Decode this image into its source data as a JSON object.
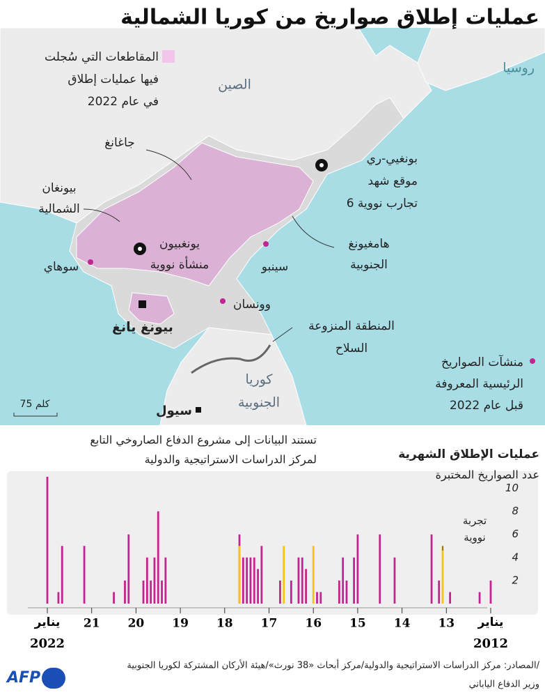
{
  "header": {
    "title": "عمليات إطلاق صواريخ من كوريا الشمالية"
  },
  "map": {
    "legend": [
      "المقاطعات التي سُجلت",
      "فيها عمليات إطلاق",
      "في عام 2022"
    ],
    "russia": "روسيا",
    "china": "الصين",
    "south_korea": [
      "كوريا",
      "الجنوبية"
    ],
    "jagang": "جاغانغ",
    "north_pyongan": [
      "بيونغان",
      "الشمالية"
    ],
    "sohae": "سوهاي",
    "yongbyon": [
      "يونغبيون",
      "منشأة نووية"
    ],
    "sinpo": "سينبو",
    "wonsan": "وونسان",
    "pyongyang": "بيونغ يانغ",
    "punggye": [
      "بونغيي-ري",
      "موقع شهد",
      "6 تجارب نووية"
    ],
    "south_hamgyong": [
      "هامغيونغ",
      "الجنوبية"
    ],
    "dmz": [
      "المنطقة المنزوعة",
      "السلاح"
    ],
    "sites_legend": [
      "منشآت الصواريخ",
      "الرئيسية المعروفة",
      "قبل عام 2022"
    ],
    "seoul": "سيول",
    "scale": "75 كلم"
  },
  "chart_data": {
    "type": "bar",
    "title": "عمليات الإطلاق الشهرية",
    "subtitle": "عدد الصواريخ المختبرة",
    "note": [
      "تستند البيانات إلى مشروع الدفاع الصاروخي التابع",
      "لمركز الدراسات الاستراتيجية والدولية"
    ],
    "month_label": "يناير",
    "categories": [
      "2012",
      null,
      null,
      null,
      null,
      null,
      null,
      null,
      null,
      null,
      null,
      null,
      "13",
      null,
      null,
      null,
      null,
      null,
      null,
      null,
      null,
      null,
      null,
      null,
      "14",
      null,
      null,
      null,
      null,
      null,
      null,
      null,
      null,
      null,
      null,
      null,
      "15",
      null,
      null,
      null,
      null,
      null,
      null,
      null,
      null,
      null,
      null,
      null,
      "16",
      null,
      null,
      null,
      null,
      null,
      null,
      null,
      null,
      null,
      null,
      null,
      "17",
      null,
      null,
      null,
      null,
      null,
      null,
      null,
      null,
      null,
      null,
      null,
      "18",
      null,
      null,
      null,
      null,
      null,
      null,
      null,
      null,
      null,
      null,
      null,
      "19",
      null,
      null,
      null,
      null,
      null,
      null,
      null,
      null,
      null,
      null,
      null,
      "20",
      null,
      null,
      null,
      null,
      null,
      null,
      null,
      null,
      null,
      null,
      null,
      "21",
      null,
      null,
      null,
      null,
      null,
      null,
      null,
      null,
      null,
      null,
      null,
      "2022"
    ],
    "x_direction": "right-to-left",
    "series": [
      {
        "color": "#c2258f",
        "values": [
          2,
          0,
          0,
          1,
          0,
          0,
          0,
          0,
          0,
          0,
          0,
          1,
          0,
          0,
          2,
          0,
          6,
          0,
          0,
          0,
          0,
          0,
          0,
          0,
          0,
          0,
          4,
          0,
          0,
          0,
          6,
          0,
          0,
          0,
          0,
          0,
          6,
          4,
          0,
          2,
          4,
          2,
          0,
          0,
          0,
          0,
          1,
          1,
          0,
          0,
          3,
          4,
          4,
          0,
          2,
          0,
          0,
          2,
          0,
          0,
          0,
          0,
          5,
          3,
          4,
          4,
          4,
          4,
          6,
          0,
          0,
          0,
          0,
          0,
          0,
          0,
          0,
          0,
          0,
          0,
          0,
          0,
          0,
          0,
          0,
          0,
          0,
          0,
          4,
          2,
          8,
          4,
          2,
          4,
          2,
          0,
          0,
          0,
          6,
          2,
          0,
          0,
          1,
          0,
          0,
          0,
          0,
          0,
          0,
          0,
          5,
          0,
          0,
          0,
          0,
          0,
          5,
          1,
          0,
          0,
          11
        ]
      },
      {
        "name": "تجربة نووية",
        "color": "#f6c415",
        "values": [
          null,
          null,
          null,
          null,
          null,
          null,
          null,
          null,
          null,
          null,
          null,
          null,
          null,
          5,
          null,
          null,
          null,
          null,
          null,
          null,
          null,
          null,
          null,
          null,
          null,
          null,
          null,
          null,
          null,
          null,
          null,
          null,
          null,
          null,
          null,
          null,
          null,
          null,
          null,
          null,
          null,
          null,
          null,
          null,
          null,
          null,
          null,
          null,
          5,
          null,
          null,
          null,
          null,
          null,
          null,
          null,
          5,
          null,
          null,
          null,
          null,
          null,
          null,
          null,
          null,
          null,
          null,
          null,
          5,
          null,
          null,
          null,
          null,
          null,
          null,
          null,
          null,
          null,
          null,
          null,
          null,
          null,
          null,
          null,
          null,
          null,
          null,
          null,
          null,
          null,
          null,
          null,
          null,
          null,
          null,
          null,
          null,
          null,
          null,
          null,
          null,
          null,
          null,
          null,
          null,
          null,
          null,
          null,
          null,
          null,
          null,
          null,
          null,
          null,
          null,
          null,
          null,
          null,
          null,
          null,
          null
        ]
      }
    ],
    "ylim": [
      0,
      11
    ],
    "yticks": [
      2,
      4,
      6,
      8,
      10
    ],
    "grid": false
  },
  "footer": {
    "sources": [
      "المصادر: مركز الدراسات الاستراتيجية والدولية/مركز أبحاث «38 نورث»/هيئة الأركان المشتركة لكوريا الجنوبية/",
      "وزير الدفاع الياباني"
    ],
    "logo": "AFP"
  }
}
